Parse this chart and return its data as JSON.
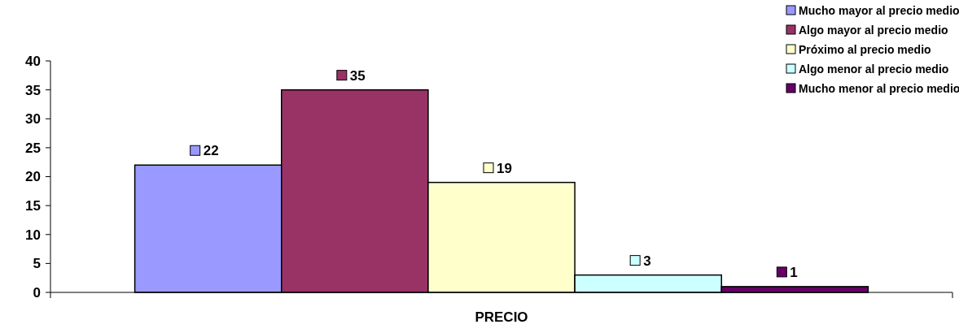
{
  "chart_data": {
    "type": "bar",
    "categories": [
      "PRECIO"
    ],
    "series": [
      {
        "name": "Mucho mayor al precio medio",
        "color": "#9999ff",
        "values": [
          22
        ]
      },
      {
        "name": "Algo mayor al precio medio",
        "color": "#993366",
        "values": [
          35
        ]
      },
      {
        "name": "Próximo al precio medio",
        "color": "#ffffcc",
        "values": [
          19
        ]
      },
      {
        "name": "Algo menor al precio medio",
        "color": "#ccffff",
        "values": [
          3
        ]
      },
      {
        "name": "Mucho menor al precio medio",
        "color": "#660066",
        "values": [
          1
        ]
      }
    ],
    "ylim": [
      0,
      40
    ],
    "yticks": [
      0,
      5,
      10,
      15,
      20,
      25,
      30,
      35,
      40
    ],
    "data_labels": true,
    "legend": "top right",
    "grid": false
  }
}
